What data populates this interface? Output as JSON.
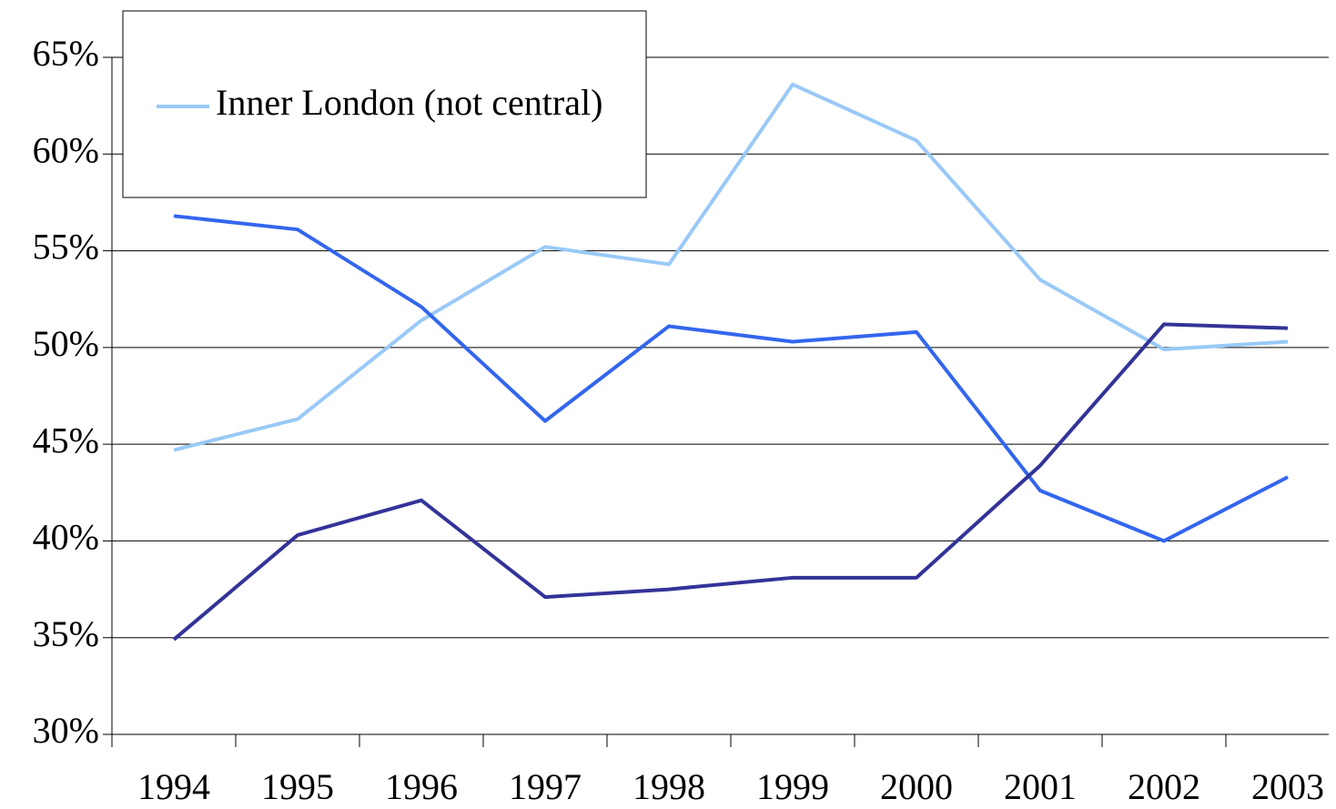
{
  "chart_data": {
    "type": "line",
    "categories": [
      "1994",
      "1995",
      "1996",
      "1997",
      "1998",
      "1999",
      "2000",
      "2001",
      "2002",
      "2003"
    ],
    "series": [
      {
        "name": "Inner London (not central)",
        "color": "#99c9f7",
        "values": [
          44.7,
          46.3,
          51.4,
          55.2,
          54.3,
          63.6,
          60.7,
          53.5,
          49.9,
          50.3
        ]
      },
      {
        "color": "#3366ee",
        "values": [
          56.8,
          56.1,
          52.1,
          46.2,
          51.1,
          50.3,
          50.8,
          42.6,
          40.0,
          43.3
        ]
      },
      {
        "color": "#333399",
        "values": [
          34.9,
          40.3,
          42.1,
          37.1,
          37.5,
          38.1,
          38.1,
          43.9,
          51.2,
          51.0
        ]
      }
    ],
    "ylim": [
      30,
      65
    ],
    "yticks": [
      {
        "value": 30,
        "label": "30%"
      },
      {
        "value": 35,
        "label": "35%"
      },
      {
        "value": 40,
        "label": "40%"
      },
      {
        "value": 45,
        "label": "45%"
      },
      {
        "value": 50,
        "label": "50%"
      },
      {
        "value": 55,
        "label": "55%"
      },
      {
        "value": 60,
        "label": "60%"
      },
      {
        "value": 65,
        "label": "65%"
      }
    ],
    "grid": true,
    "legend": "upper left"
  }
}
